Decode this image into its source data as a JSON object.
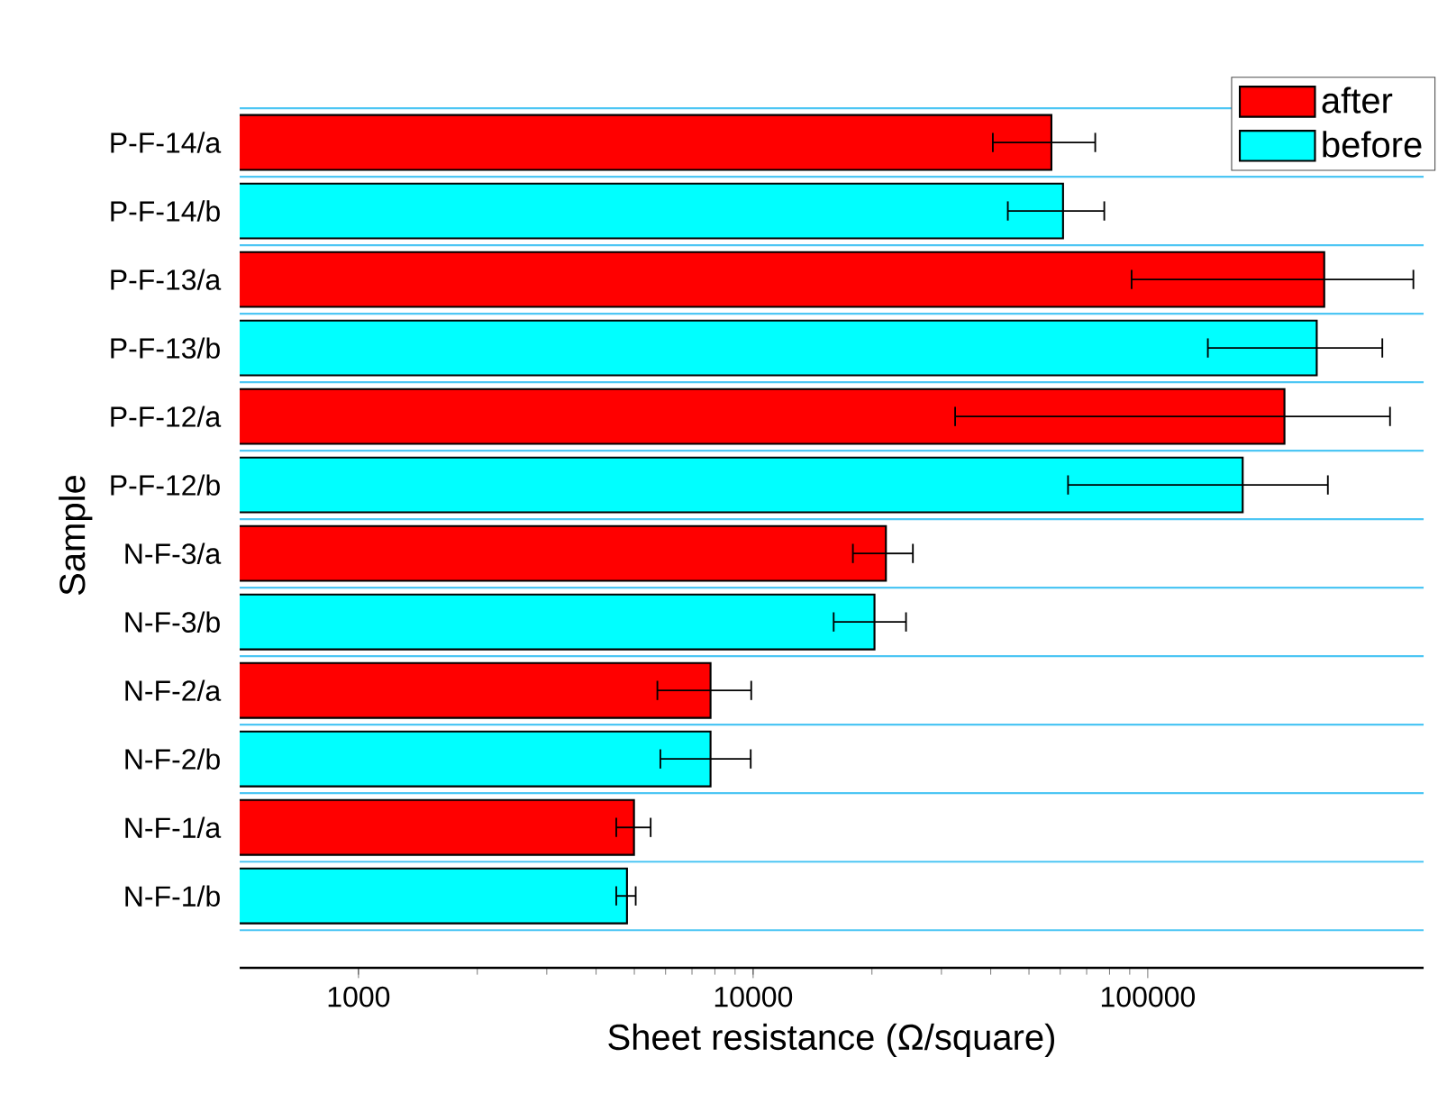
{
  "chart_data": {
    "type": "bar",
    "orientation": "horizontal",
    "log": "x",
    "xlabel": "Sheet resistance (Ω/square)",
    "ylabel": "Sample",
    "categories": [
      "P-F-14/a",
      "P-F-14/b",
      "P-F-13/a",
      "P-F-13/b",
      "P-F-12/a",
      "P-F-12/b",
      "N-F-3/a",
      "N-F-3/b",
      "N-F-2/a",
      "N-F-2/b",
      "N-F-1/a",
      "N-F-1/b"
    ],
    "xlim": [
      500,
      500000
    ],
    "xticks": [
      1000,
      10000,
      100000
    ],
    "grid": "y",
    "legend": "top right",
    "series": [
      {
        "name": "after",
        "color": "#ff0000",
        "values": [
          57000,
          null,
          280000,
          null,
          222000,
          null,
          21700,
          null,
          7800,
          null,
          4990,
          null
        ],
        "errors": [
          [
            40500,
            73600
          ],
          null,
          [
            91000,
            471000
          ],
          null,
          [
            32500,
            411000
          ],
          null,
          [
            17900,
            25400
          ],
          null,
          [
            5720,
            9890
          ],
          null,
          [
            4500,
            5500
          ],
          null
        ]
      },
      {
        "name": "before",
        "color": "#00ffff",
        "values": [
          null,
          61000,
          null,
          268000,
          null,
          174000,
          null,
          20300,
          null,
          7800,
          null,
          4790
        ],
        "errors": [
          null,
          [
            44200,
            77600
          ],
          null,
          [
            142000,
            393000
          ],
          null,
          [
            62800,
            286000
          ],
          null,
          [
            16000,
            24400
          ],
          null,
          [
            5820,
            9860
          ],
          null,
          [
            4500,
            5040
          ]
        ]
      }
    ]
  }
}
